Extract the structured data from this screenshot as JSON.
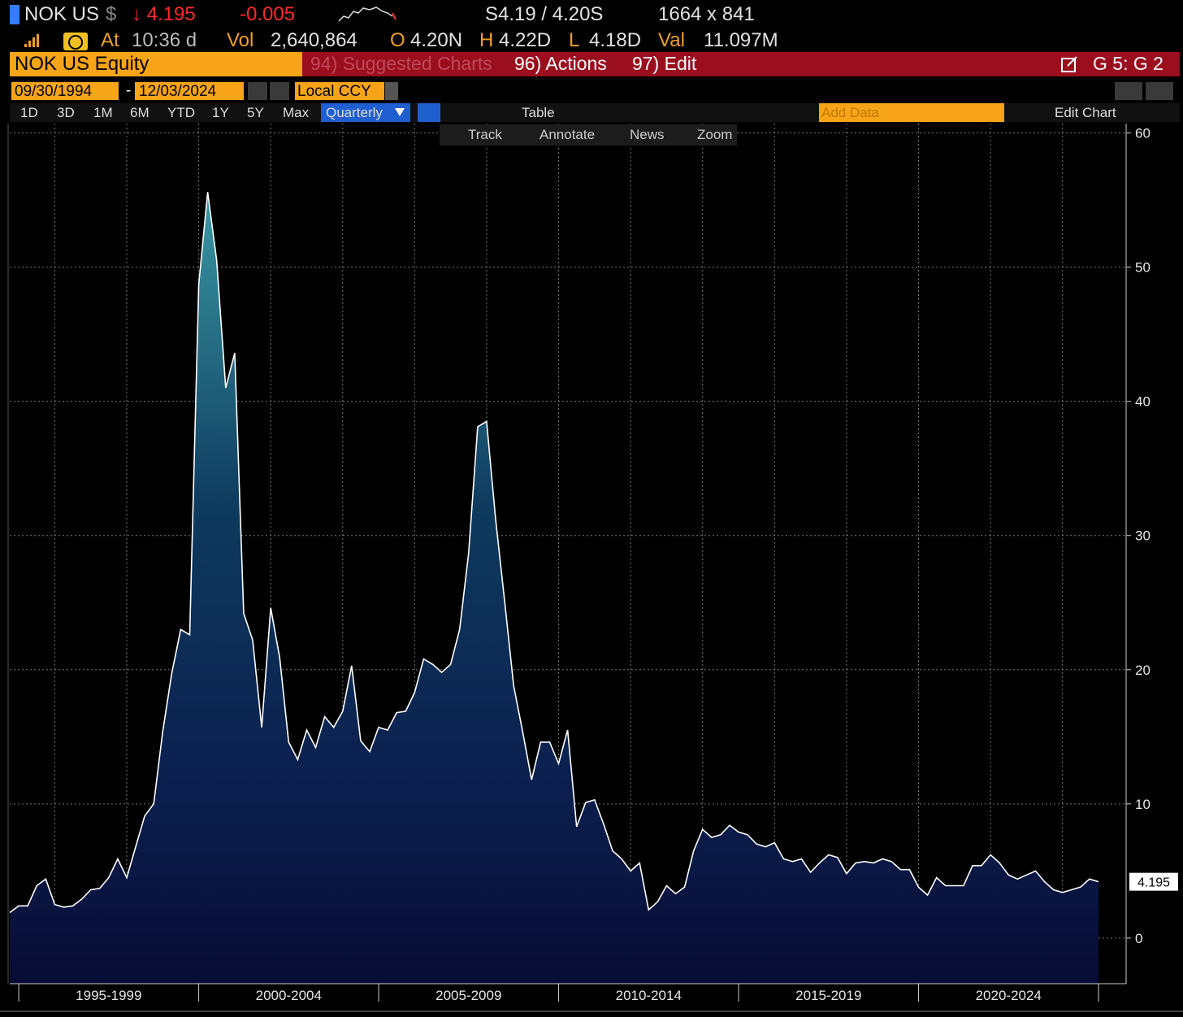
{
  "header": {
    "ticker": "NOK US",
    "currency": "$",
    "price": "↓ 4.195",
    "change": "-0.005",
    "bid_ask": "S4.19 / 4.20S",
    "size": "1664 x 841"
  },
  "quote": {
    "time_label": "At",
    "time": "10:36 d",
    "vol_label": "Vol",
    "vol": "2,640,864",
    "open_label": "O",
    "open": "4.20N",
    "high_label": "H",
    "high": "4.22D",
    "low_label": "L",
    "low": "4.18D",
    "val_label": "Val",
    "val": "11.097M"
  },
  "menu": {
    "security": "NOK US Equity",
    "suggested": "94) Suggested Charts",
    "actions": "96) Actions",
    "edit": "97) Edit",
    "page": "G 5: G 2"
  },
  "range": {
    "start": "09/30/1994",
    "dash": "-",
    "end": "12/03/2024",
    "currency": "Local CCY"
  },
  "periods": [
    "1D",
    "3D",
    "1M",
    "6M",
    "YTD",
    "1Y",
    "5Y",
    "Max"
  ],
  "frequency": "Quarterly",
  "table": "Table",
  "add_data": "Add Data",
  "edit_chart": "Edit Chart",
  "tools": [
    "Track",
    "Annotate",
    "News",
    "Zoom"
  ],
  "chart_data": {
    "type": "area",
    "color": "#ffffff",
    "grid": true,
    "x_labels": [
      "1995-1999",
      "2000-2004",
      "2005-2009",
      "2010-2014",
      "2015-2019",
      "2020-2024"
    ],
    "values": [
      1.9,
      2.4,
      2.4,
      3.9,
      4.4,
      2.5,
      2.3,
      2.4,
      2.9,
      3.6,
      3.7,
      4.5,
      5.9,
      4.5,
      6.8,
      9.1,
      10.0,
      15.4,
      19.7,
      23.0,
      22.6,
      48.7,
      55.6,
      50.5,
      41.0,
      43.6,
      24.2,
      22.2,
      15.7,
      24.6,
      20.9,
      14.6,
      13.3,
      15.5,
      14.2,
      16.5,
      15.7,
      16.9,
      20.3,
      14.7,
      13.9,
      15.7,
      15.5,
      16.8,
      16.9,
      18.3,
      20.8,
      20.4,
      19.8,
      20.4,
      23.0,
      28.7,
      38.1,
      38.5,
      31.2,
      25.1,
      18.8,
      15.4,
      11.8,
      14.6,
      14.6,
      13.0,
      15.5,
      8.3,
      10.1,
      10.3,
      8.5,
      6.5,
      5.9,
      5.0,
      5.6,
      2.1,
      2.7,
      3.9,
      3.3,
      3.8,
      6.5,
      8.1,
      7.5,
      7.7,
      8.4,
      7.9,
      7.7,
      7.0,
      6.8,
      7.1,
      5.9,
      5.7,
      5.9,
      4.9,
      5.6,
      6.2,
      6.0,
      4.8,
      5.6,
      5.7,
      5.6,
      5.9,
      5.7,
      5.1,
      5.1,
      3.8,
      3.2,
      4.5,
      3.9,
      3.9,
      3.9,
      5.4,
      5.4,
      6.2,
      5.6,
      4.7,
      4.4,
      4.7,
      5.0,
      4.2,
      3.6,
      3.4,
      3.6,
      3.8,
      4.4,
      4.195
    ],
    "ylim": [
      -3.4,
      60.7
    ],
    "yticks": [
      0,
      10,
      20,
      30,
      40,
      50,
      60
    ]
  }
}
